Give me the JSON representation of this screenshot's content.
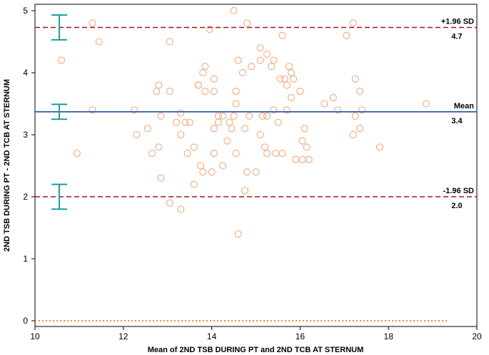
{
  "chart_data": {
    "type": "scatter",
    "title": "",
    "xlabel": "Mean of 2ND TSB DURING PT and 2ND TCB AT STERNUM",
    "ylabel": "2ND TSB DURING PT - 2ND TCB AT STERNUM",
    "xlim": [
      10,
      20
    ],
    "ylim": [
      -0.05,
      5.15
    ],
    "xticks": [
      10,
      12,
      14,
      16,
      18,
      20
    ],
    "yticks": [
      0,
      1,
      2,
      3,
      4,
      5
    ],
    "grid": false,
    "colors": {
      "points": "#f0a070",
      "mean": "#1f4fa8",
      "limits": "#a01818",
      "ci": "#1a9e9e",
      "zero": "#f08a20"
    },
    "reference_lines": [
      {
        "name": "upper_loa",
        "label": "+1.96 SD",
        "value_text": "4.7",
        "y": 4.73,
        "style": "dashed",
        "ci": [
          4.53,
          4.93
        ]
      },
      {
        "name": "mean",
        "label": "Mean",
        "value_text": "3.4",
        "y": 3.37,
        "style": "solid",
        "ci": [
          3.25,
          3.49
        ]
      },
      {
        "name": "lower_loa",
        "label": "-1.96 SD",
        "value_text": "2.0",
        "y": 2.0,
        "style": "dashed",
        "ci": [
          1.8,
          2.2
        ]
      },
      {
        "name": "zero",
        "label": "",
        "value_text": "",
        "y": 0,
        "style": "dotted",
        "ci": null
      }
    ],
    "ci_x": 10.55,
    "points": [
      [
        10.6,
        4.2
      ],
      [
        10.95,
        2.7
      ],
      [
        11.3,
        4.8
      ],
      [
        11.45,
        4.5
      ],
      [
        11.3,
        3.4
      ],
      [
        12.25,
        3.4
      ],
      [
        12.3,
        3.0
      ],
      [
        12.55,
        3.1
      ],
      [
        12.65,
        2.7
      ],
      [
        12.75,
        3.7
      ],
      [
        12.8,
        3.8
      ],
      [
        12.8,
        2.8
      ],
      [
        12.85,
        3.3
      ],
      [
        12.85,
        2.3
      ],
      [
        13.05,
        3.7
      ],
      [
        13.05,
        4.5
      ],
      [
        13.05,
        1.9
      ],
      [
        13.2,
        3.2
      ],
      [
        13.3,
        3.35
      ],
      [
        13.3,
        3.0
      ],
      [
        13.3,
        1.8
      ],
      [
        13.4,
        3.2
      ],
      [
        13.45,
        2.7
      ],
      [
        13.5,
        3.2
      ],
      [
        13.6,
        2.2
      ],
      [
        13.6,
        2.8
      ],
      [
        13.7,
        3.8
      ],
      [
        13.7,
        3.8
      ],
      [
        13.75,
        2.5
      ],
      [
        13.8,
        4.0
      ],
      [
        13.8,
        2.4
      ],
      [
        13.85,
        3.7
      ],
      [
        13.85,
        4.1
      ],
      [
        13.95,
        4.7
      ],
      [
        14.0,
        2.4
      ],
      [
        14.05,
        3.9
      ],
      [
        14.05,
        3.7
      ],
      [
        14.05,
        3.1
      ],
      [
        14.05,
        2.7
      ],
      [
        14.15,
        3.2
      ],
      [
        14.15,
        3.3
      ],
      [
        14.25,
        2.5
      ],
      [
        14.25,
        3.3
      ],
      [
        14.35,
        2.9
      ],
      [
        14.4,
        3.2
      ],
      [
        14.45,
        3.1
      ],
      [
        14.5,
        5.0
      ],
      [
        14.5,
        3.3
      ],
      [
        14.55,
        3.7
      ],
      [
        14.55,
        3.5
      ],
      [
        14.55,
        2.7
      ],
      [
        14.6,
        4.2
      ],
      [
        14.6,
        1.4
      ],
      [
        14.7,
        4.0
      ],
      [
        14.75,
        3.1
      ],
      [
        14.75,
        2.1
      ],
      [
        14.8,
        4.8
      ],
      [
        14.8,
        2.4
      ],
      [
        14.85,
        3.3
      ],
      [
        14.9,
        4.1
      ],
      [
        15.0,
        2.4
      ],
      [
        15.1,
        4.4
      ],
      [
        15.1,
        4.2
      ],
      [
        15.1,
        3.0
      ],
      [
        15.15,
        3.3
      ],
      [
        15.2,
        2.8
      ],
      [
        15.25,
        4.3
      ],
      [
        15.25,
        3.3
      ],
      [
        15.25,
        2.7
      ],
      [
        15.35,
        4.1
      ],
      [
        15.4,
        4.2
      ],
      [
        15.4,
        3.4
      ],
      [
        15.45,
        2.7
      ],
      [
        15.5,
        3.2
      ],
      [
        15.55,
        3.9
      ],
      [
        15.6,
        4.6
      ],
      [
        15.6,
        2.7
      ],
      [
        15.65,
        3.9
      ],
      [
        15.7,
        3.8
      ],
      [
        15.7,
        3.4
      ],
      [
        15.75,
        4.1
      ],
      [
        15.8,
        3.6
      ],
      [
        15.8,
        4.0
      ],
      [
        15.85,
        3.9
      ],
      [
        15.9,
        2.6
      ],
      [
        16.0,
        3.7
      ],
      [
        16.05,
        2.6
      ],
      [
        16.05,
        2.9
      ],
      [
        16.1,
        3.1
      ],
      [
        16.15,
        2.8
      ],
      [
        16.2,
        2.6
      ],
      [
        16.55,
        3.5
      ],
      [
        16.75,
        3.6
      ],
      [
        16.85,
        3.4
      ],
      [
        17.05,
        4.6
      ],
      [
        17.2,
        4.8
      ],
      [
        17.2,
        3.0
      ],
      [
        17.25,
        3.9
      ],
      [
        17.25,
        3.3
      ],
      [
        17.35,
        3.7
      ],
      [
        17.35,
        3.1
      ],
      [
        17.4,
        3.4
      ],
      [
        17.8,
        2.8
      ],
      [
        18.85,
        3.5
      ]
    ]
  }
}
